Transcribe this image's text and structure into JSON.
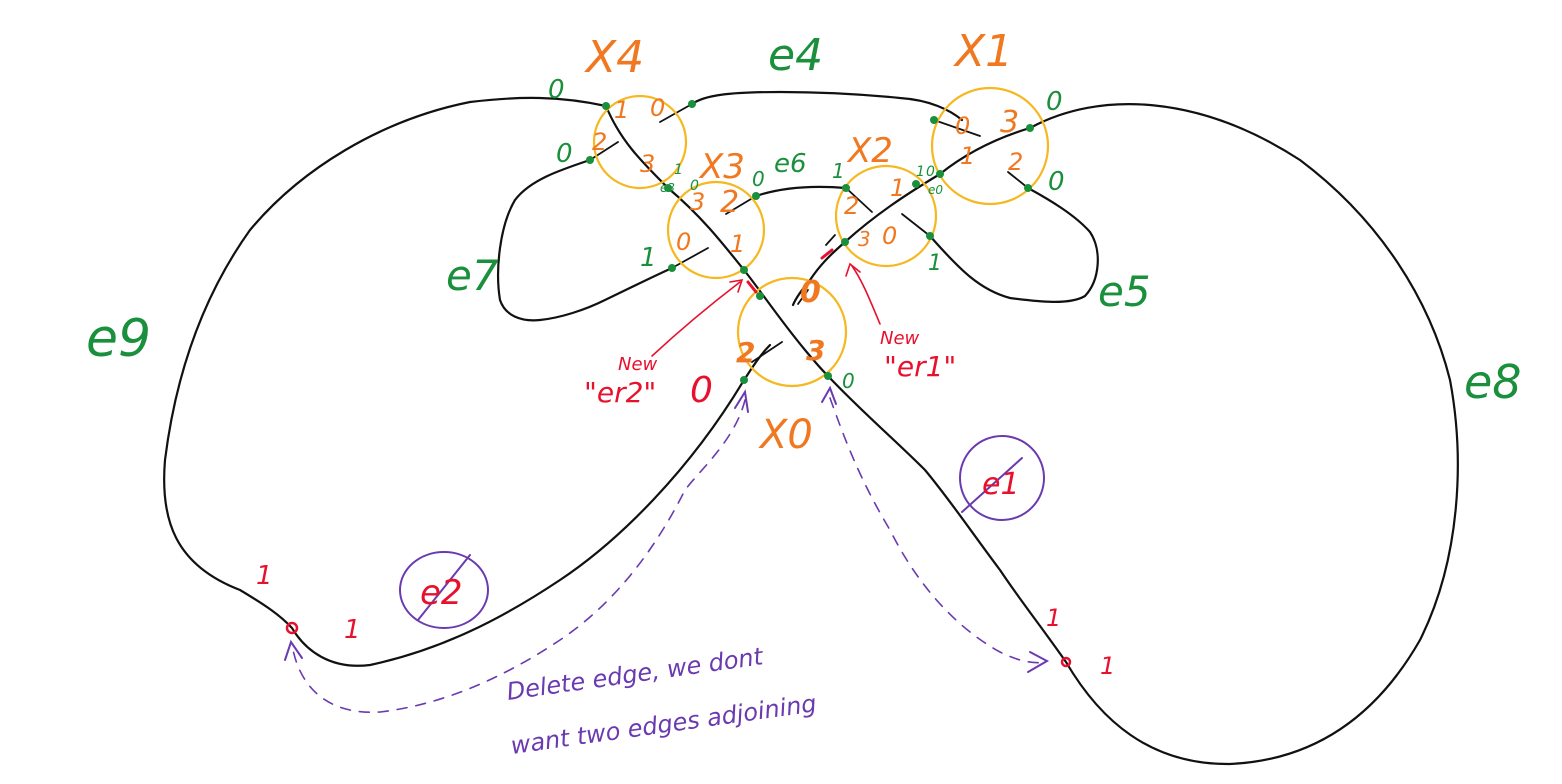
{
  "colors": {
    "strand": "#111111",
    "crossing_circle": "#f5b820",
    "crossing_label": "#f07820",
    "edge_label": "#1a8f3c",
    "new_annotation": "#e8112d",
    "deleted_annotation": "#6a3ab0"
  },
  "crossings": {
    "x4": "X4",
    "x1": "X1",
    "x3": "X3",
    "x2": "X2",
    "x0": "X0"
  },
  "edges": {
    "e4": "e4",
    "e6": "e6",
    "e7": "e7",
    "e5": "e5",
    "e9": "e9",
    "e8": "e8",
    "e3": "e3",
    "e0": "e0"
  },
  "ports": {
    "x4": [
      "1",
      "0",
      "2",
      "3"
    ],
    "x1": [
      "0",
      "3",
      "1",
      "2"
    ],
    "x3": [
      "3",
      "2",
      "0",
      "1"
    ],
    "x2": [
      "2",
      "1",
      "3",
      "0"
    ],
    "x0": [
      "0",
      "2",
      "3"
    ]
  },
  "edge_ends": {
    "x4_top": "0",
    "x4_left": "0",
    "x3_left": "1",
    "x3_top_right": "0",
    "x2_top_left": "1",
    "x1_right_top": "0",
    "x1_right_bottom": "0",
    "x2_bottom": "1",
    "x4_small": "1",
    "x3_small": "0",
    "x2_small": "1",
    "x1_small": "0",
    "x0_right_small": "0"
  },
  "new_labels": {
    "new_word_left": "New",
    "er2": "\"er2\"",
    "new_word_right": "New",
    "er1": "\"er1\""
  },
  "deleted": {
    "e2": "e2",
    "e1": "e1",
    "red_left_a": "1",
    "red_left_b": "1",
    "red_right_a": "1",
    "red_right_b": "1",
    "x0_red_zero": "0"
  },
  "note": {
    "line1": "Delete edge, we dont",
    "line2": "want two edges adjoining"
  }
}
